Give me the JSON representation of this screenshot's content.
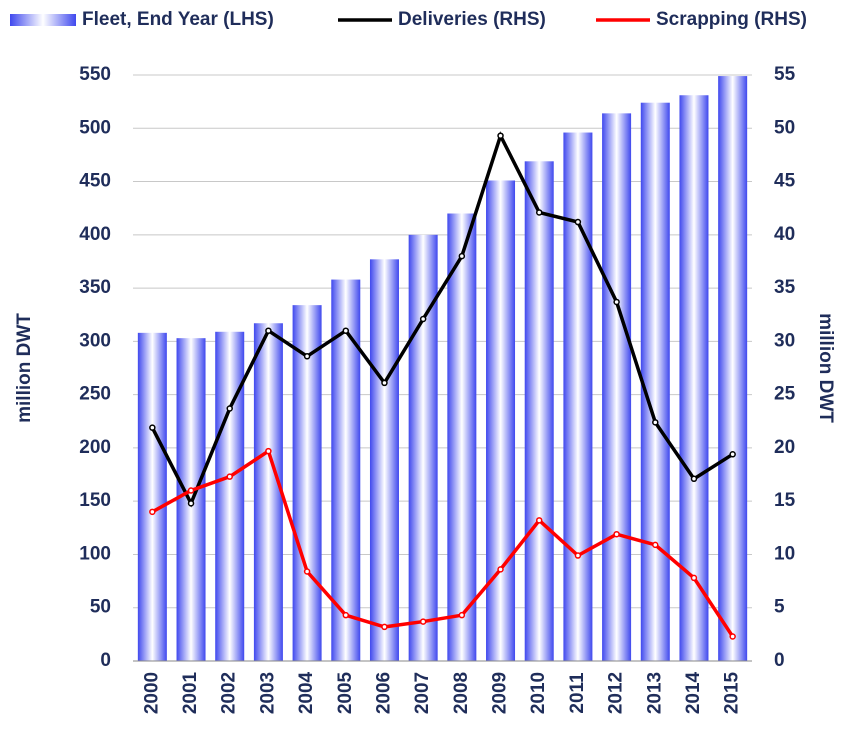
{
  "chart_data": {
    "type": "bar-line",
    "categories": [
      "2000",
      "2001",
      "2002",
      "2003",
      "2004",
      "2005",
      "2006",
      "2007",
      "2008",
      "2009",
      "2010",
      "2011",
      "2012",
      "2013",
      "2014",
      "2015"
    ],
    "series": [
      {
        "name": "Fleet, End Year (LHS)",
        "type": "bar",
        "color": "#3333ff",
        "values": [
          308,
          303,
          309,
          317,
          334,
          358,
          377,
          400,
          420,
          451,
          469,
          496,
          514,
          524,
          531,
          549
        ]
      },
      {
        "name": "Deliveries (RHS)",
        "type": "line",
        "axis": "y2",
        "color": "#000000",
        "values": [
          21.9,
          14.8,
          23.7,
          31.0,
          28.6,
          31.0,
          26.1,
          32.1,
          38.0,
          49.3,
          42.1,
          41.2,
          33.7,
          22.4,
          17.1,
          19.4
        ]
      },
      {
        "name": "Scrapping (RHS)",
        "type": "line",
        "axis": "y2",
        "color": "#ff0000",
        "values": [
          14.0,
          16.0,
          17.3,
          19.7,
          8.4,
          4.3,
          3.2,
          3.7,
          4.3,
          8.6,
          13.2,
          9.9,
          11.9,
          10.9,
          7.8,
          2.3
        ]
      }
    ],
    "ylabel": "million DWT",
    "y2label": "million DWT",
    "ylim": [
      0,
      550
    ],
    "yticks": [
      0,
      50,
      100,
      150,
      200,
      250,
      300,
      350,
      400,
      450,
      500,
      550
    ],
    "y2lim": [
      0,
      55
    ],
    "y2ticks": [
      0,
      5,
      10,
      15,
      20,
      25,
      30,
      35,
      40,
      45,
      50,
      55
    ],
    "grid": true,
    "legend": "top"
  }
}
